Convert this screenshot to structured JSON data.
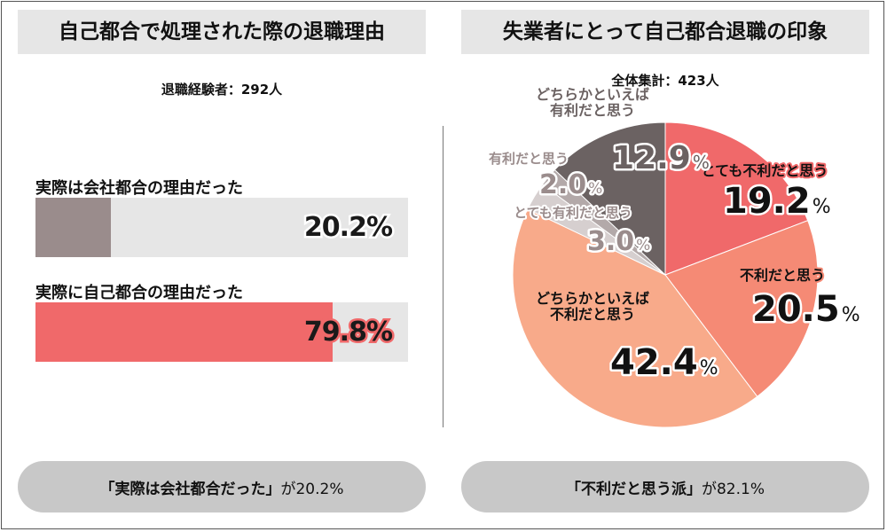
{
  "left": {
    "title": "自己都合で処理された際の退職理由",
    "respondents": "退職経験者：292人",
    "bars": [
      {
        "label": "実際は会社都合の理由だった",
        "value": 20.2,
        "value_label": "20.2%",
        "color": "#9a8c8c"
      },
      {
        "label": "実際に自己都合の理由だった",
        "value": 79.8,
        "value_label": "79.8%",
        "color": "#f0696a"
      }
    ],
    "summary_quote": "「実際は会社都合だった」",
    "summary_suffix": "が20.2%"
  },
  "right": {
    "title": "失業者にとって自己都合退職の印象",
    "respondents": "全体集計：423人",
    "summary_quote": "「不利だと思う派」",
    "summary_suffix": "が82.1%"
  },
  "chart_data": [
    {
      "type": "bar",
      "title": "自己都合で処理された際の退職理由",
      "subtitle": "退職経験者：292人",
      "categories": [
        "実際は会社都合の理由だった",
        "実際に自己都合の理由だった"
      ],
      "values": [
        20.2,
        79.8
      ],
      "unit": "%",
      "xlim": [
        0,
        100
      ]
    },
    {
      "type": "pie",
      "title": "失業者にとって自己都合退職の印象",
      "subtitle": "全体集計：423人",
      "slices": [
        {
          "label": "とても不利だと思う",
          "value": 19.2,
          "value_label": "19.2",
          "color": "#f0696a"
        },
        {
          "label": "不利だと思う",
          "value": 20.5,
          "value_label": "20.5",
          "color": "#f58a75"
        },
        {
          "label": "どちらかといえば不利だと思う",
          "value": 42.4,
          "value_label": "42.4",
          "color": "#f8aa8a"
        },
        {
          "label": "とても有利だと思う",
          "value": 3.0,
          "value_label": "3.0",
          "color": "#d6cfcf"
        },
        {
          "label": "有利だと思う",
          "value": 2.0,
          "value_label": "2.0",
          "color": "#b3a9a9"
        },
        {
          "label": "どちらかといえば有利だと思う",
          "value": 12.9,
          "value_label": "12.9",
          "color": "#6b6262"
        }
      ],
      "unit": "%"
    }
  ]
}
